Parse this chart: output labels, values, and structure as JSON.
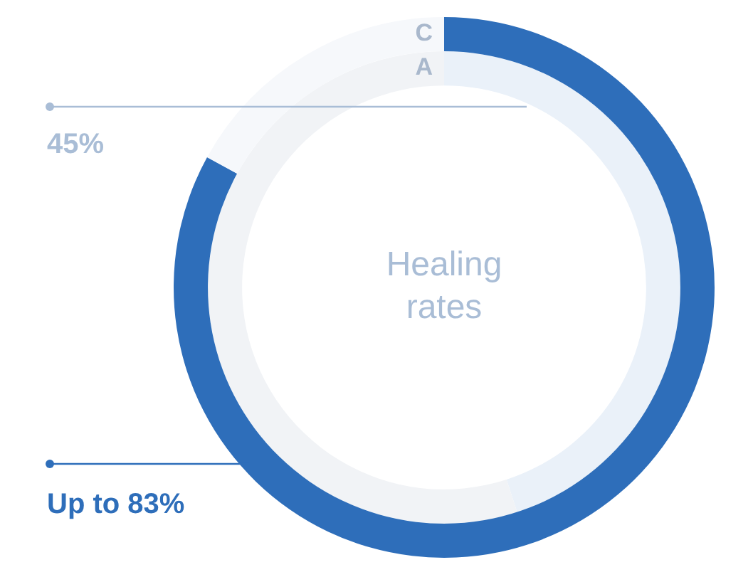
{
  "chart_data": {
    "type": "donut",
    "title": "Healing rates",
    "categories": [
      null,
      null
    ],
    "series": [
      {
        "name": "C",
        "colors": [
          "#2e6eba",
          "#f6f8fb"
        ],
        "values": [
          83,
          17
        ],
        "value_labels": [
          "Up to 83%",
          null
        ]
      },
      {
        "name": "A",
        "colors": [
          "#eaf1f9",
          "#f1f3f6"
        ],
        "values": [
          45,
          55
        ],
        "value_labels": [
          "45%",
          null
        ]
      }
    ],
    "legend": false
  }
}
